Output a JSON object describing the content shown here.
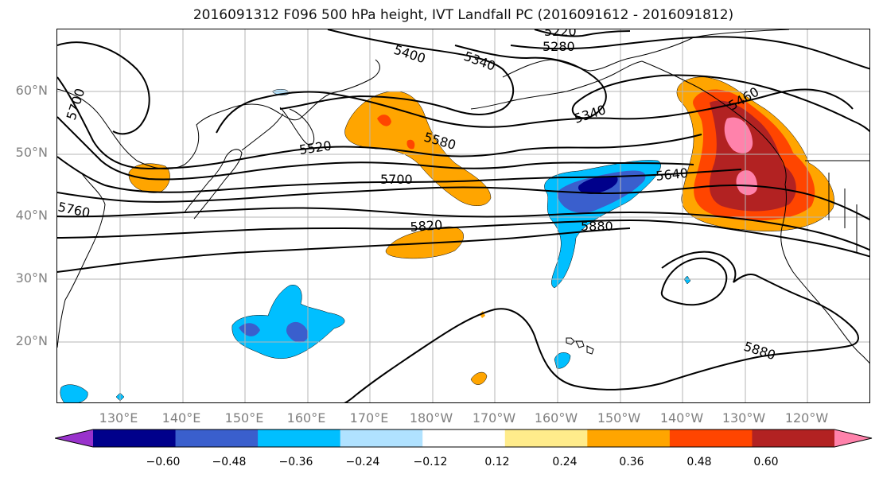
{
  "title": "2016091312 F096 500 hPa height, IVT Landfall PC (2016091612 - 2016091812)",
  "lat_labels": [
    "60°N",
    "50°N",
    "40°N",
    "30°N",
    "20°N"
  ],
  "lon_labels": [
    "130°E",
    "140°E",
    "150°E",
    "160°E",
    "170°E",
    "180°W",
    "170°W",
    "160°W",
    "150°W",
    "140°W",
    "130°W",
    "120°W"
  ],
  "contour_labels": {
    "c5220": "5220",
    "c5280": "5280",
    "c5340a": "5340",
    "c5340b": "5340",
    "c5400": "5400",
    "c5460": "5460",
    "c5520": "5520",
    "c5580": "5580",
    "c5640": "5640",
    "c5700a": "5700",
    "c5700b": "5700",
    "c5760": "5760",
    "c5820": "5820",
    "c5880a": "5880",
    "c5880b": "5880"
  },
  "colorbar": {
    "colors": [
      "#9932cc",
      "#00008b",
      "#3a5fcd",
      "#00bfff",
      "#b0e2ff",
      "#ffffff",
      "#ffec8b",
      "#ffa500",
      "#ff4500",
      "#b22222",
      "#ff82ab"
    ],
    "tick_labels": [
      "−0.60",
      "−0.48",
      "−0.36",
      "−0.24",
      "−0.12",
      "0.12",
      "0.24",
      "0.36",
      "0.48",
      "0.60"
    ]
  }
}
